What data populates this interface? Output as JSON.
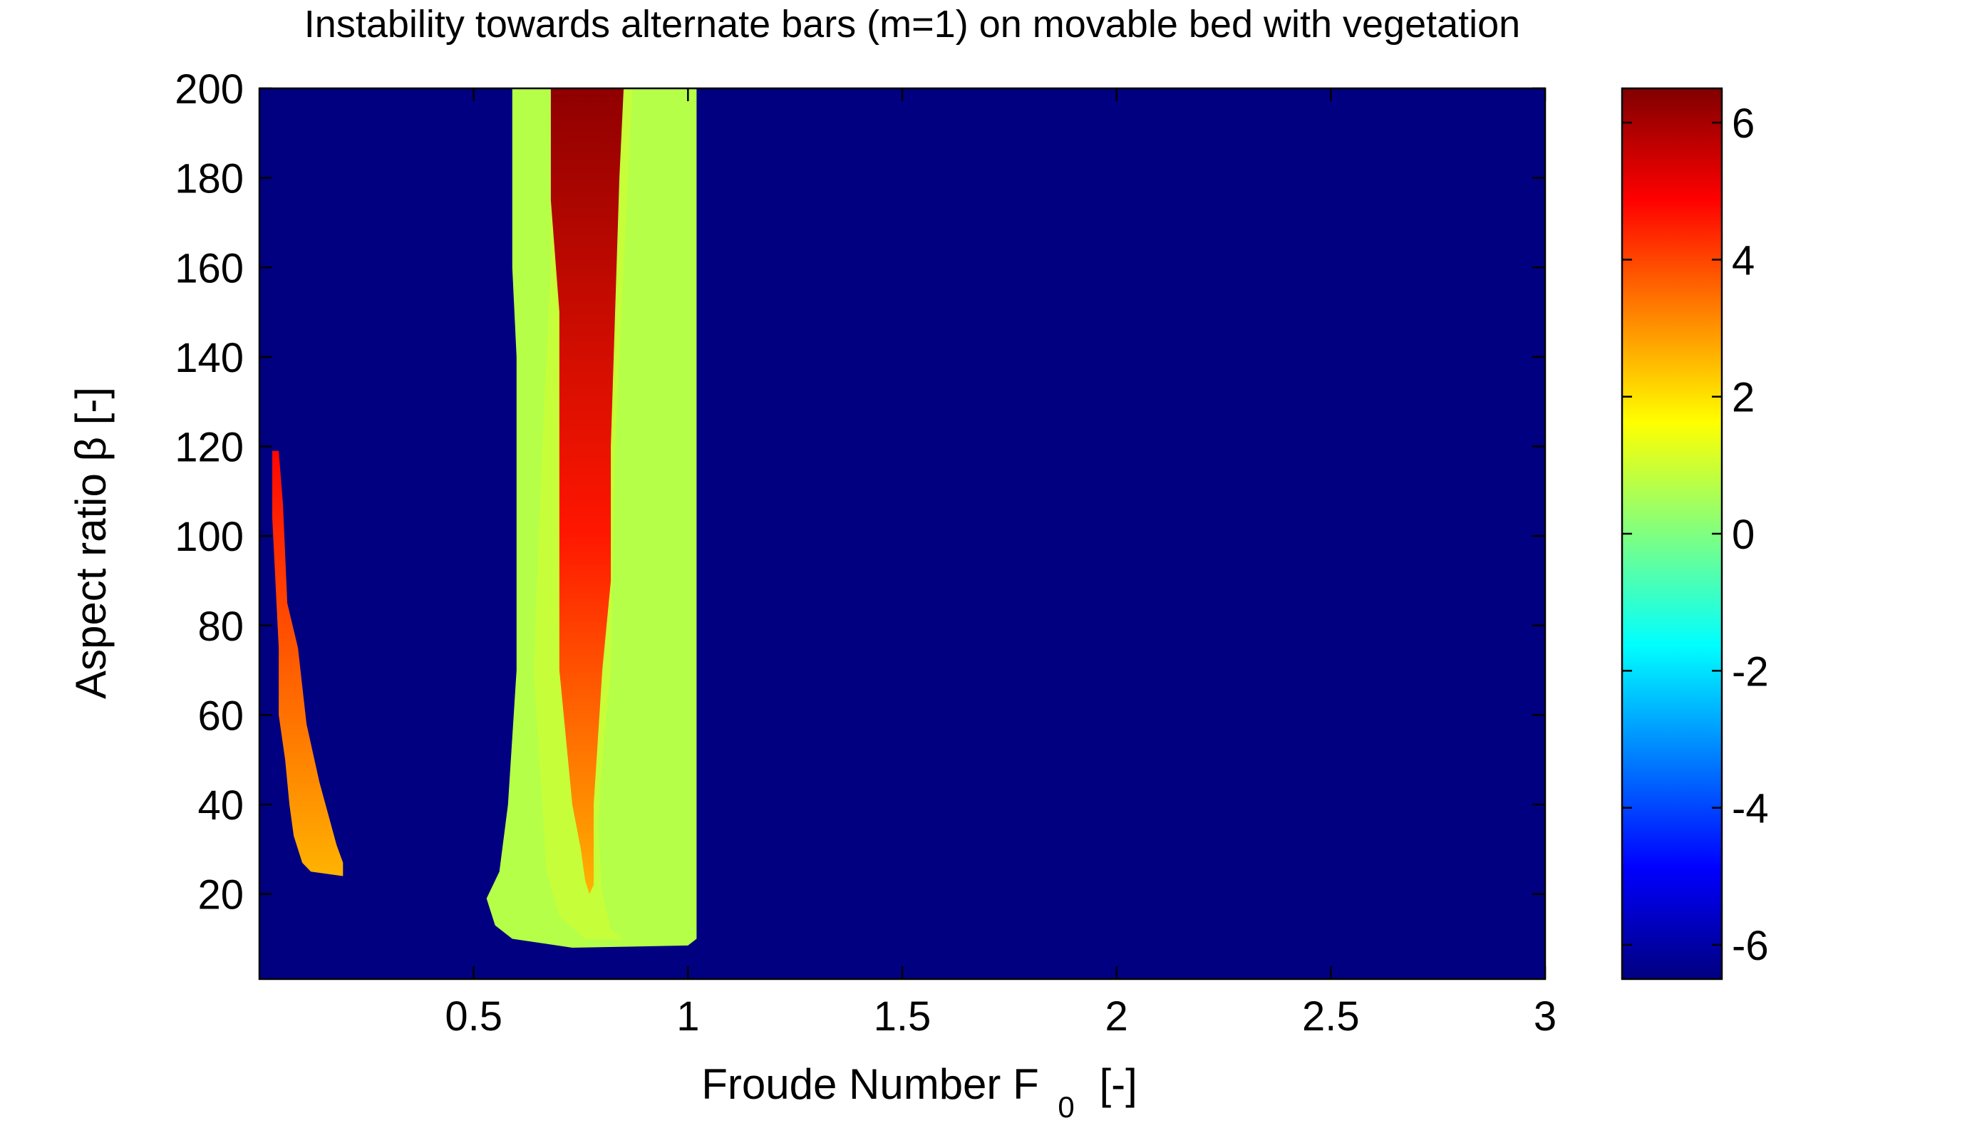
{
  "chart_data": {
    "type": "heatmap",
    "title": "Instability towards alternate bars (m=1) on movable bed with vegetation",
    "xlabel": "Froude Number F",
    "xlabel_subscript": "0",
    "xlabel_unit": "[-]",
    "ylabel": "Aspect ratio  β [-]",
    "xlim": [
      0.0,
      3.0
    ],
    "ylim": [
      1,
      200
    ],
    "x_ticks": [
      0.5,
      1,
      1.5,
      2,
      2.5,
      3
    ],
    "x_tick_labels": [
      "0.5",
      "1",
      "1.5",
      "2",
      "2.5",
      "3"
    ],
    "y_ticks": [
      20,
      40,
      60,
      80,
      100,
      120,
      140,
      160,
      180,
      200
    ],
    "y_tick_labels": [
      "20",
      "40",
      "60",
      "80",
      "100",
      "120",
      "140",
      "160",
      "180",
      "200"
    ],
    "colorbar": {
      "colormap": "jet",
      "clim": [
        -6.5,
        6.5
      ],
      "ticks": [
        -6,
        -4,
        -2,
        0,
        2,
        4,
        6
      ],
      "tick_labels": [
        "-6",
        "-4",
        "-2",
        "0",
        "2",
        "4",
        "6"
      ]
    },
    "background_value": -6.5,
    "regions": [
      {
        "id": "low-froude-unstable-band",
        "fill_value": 3.2,
        "gradient_values": {
          "top": 4.8,
          "bottom": 2.6
        },
        "left_edge": [
          [
            0.03,
            119
          ],
          [
            0.03,
            104
          ],
          [
            0.045,
            75
          ],
          [
            0.045,
            60
          ],
          [
            0.06,
            50
          ],
          [
            0.07,
            40
          ],
          [
            0.08,
            33
          ],
          [
            0.1,
            27
          ],
          [
            0.12,
            25
          ]
        ],
        "right_edge": [
          [
            0.045,
            119
          ],
          [
            0.055,
            107
          ],
          [
            0.065,
            85
          ],
          [
            0.09,
            75
          ],
          [
            0.11,
            58
          ],
          [
            0.14,
            45
          ],
          [
            0.16,
            38
          ],
          [
            0.18,
            31
          ],
          [
            0.195,
            27
          ],
          [
            0.195,
            24
          ]
        ]
      },
      {
        "id": "outer-low-growth-band",
        "fill_value": 0.7,
        "left_edge": [
          [
            0.59,
            200
          ],
          [
            0.59,
            160
          ],
          [
            0.6,
            140
          ],
          [
            0.6,
            70
          ],
          [
            0.58,
            40
          ],
          [
            0.56,
            25
          ],
          [
            0.53,
            19
          ],
          [
            0.55,
            13
          ],
          [
            0.59,
            10
          ],
          [
            0.66,
            9
          ],
          [
            0.73,
            8
          ]
        ],
        "right_edge": [
          [
            1.02,
            200
          ],
          [
            1.02,
            10
          ],
          [
            1.0,
            8.5
          ],
          [
            0.73,
            8
          ]
        ]
      },
      {
        "id": "transition-band",
        "fill_value": 0.9,
        "left_edge": [
          [
            0.68,
            200
          ],
          [
            0.68,
            160
          ],
          [
            0.66,
            120
          ],
          [
            0.64,
            70
          ],
          [
            0.66,
            40
          ],
          [
            0.67,
            25
          ],
          [
            0.7,
            15
          ],
          [
            0.76,
            10
          ]
        ],
        "right_edge": [
          [
            0.87,
            200
          ],
          [
            0.86,
            180
          ],
          [
            0.83,
            120
          ],
          [
            0.82,
            70
          ],
          [
            0.8,
            50
          ],
          [
            0.79,
            35
          ],
          [
            0.8,
            20
          ],
          [
            0.82,
            12
          ],
          [
            0.85,
            10
          ]
        ]
      },
      {
        "id": "max-growth-band",
        "fill_value": 5.0,
        "gradient_values": {
          "top": 6.3,
          "middle": 4.6,
          "bottom": 2.6
        },
        "left_edge": [
          [
            0.68,
            200
          ],
          [
            0.68,
            175
          ],
          [
            0.7,
            150
          ],
          [
            0.7,
            70
          ],
          [
            0.72,
            50
          ],
          [
            0.73,
            40
          ],
          [
            0.75,
            30
          ],
          [
            0.76,
            23
          ],
          [
            0.77,
            20
          ]
        ],
        "right_edge": [
          [
            0.85,
            200
          ],
          [
            0.84,
            180
          ],
          [
            0.83,
            150
          ],
          [
            0.82,
            120
          ],
          [
            0.82,
            90
          ],
          [
            0.8,
            70
          ],
          [
            0.79,
            55
          ],
          [
            0.78,
            40
          ],
          [
            0.78,
            30
          ],
          [
            0.78,
            22
          ],
          [
            0.77,
            20
          ]
        ]
      }
    ]
  }
}
